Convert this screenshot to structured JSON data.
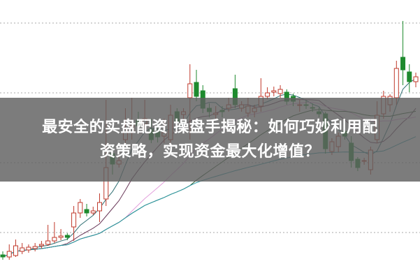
{
  "title": {
    "line1": "最安全的实盘配资 操盘手揭秘：如何巧妙利用配",
    "line2": "资策略，实现资金最大化增值？"
  },
  "chart_data": {
    "type": "candlestick",
    "grid": true,
    "colors": {
      "up": "#c0392b",
      "down": "#1e8a2e",
      "ma": [
        "#2f6f73",
        "#6b3a5a",
        "#e3a0dc",
        "#2d5a2d",
        "#2a9aa8"
      ]
    },
    "moving_average_periods": [
      5,
      10,
      20,
      30,
      60
    ],
    "candles_ohlc": [
      [
        35,
        32,
        40,
        28
      ],
      [
        32,
        40,
        50,
        28
      ],
      [
        34,
        48,
        57,
        32
      ],
      [
        40,
        45,
        52,
        36
      ],
      [
        42,
        46,
        50,
        38
      ],
      [
        44,
        47,
        52,
        40
      ],
      [
        48,
        50,
        55,
        44
      ],
      [
        50,
        55,
        78,
        48
      ],
      [
        55,
        60,
        82,
        52
      ],
      [
        60,
        62,
        72,
        56
      ],
      [
        63,
        60,
        66,
        56
      ],
      [
        75,
        95,
        105,
        55
      ],
      [
        95,
        110,
        115,
        88
      ],
      [
        100,
        95,
        108,
        90
      ],
      [
        95,
        98,
        104,
        92
      ],
      [
        98,
        110,
        123,
        82
      ],
      [
        115,
        160,
        257,
        105
      ],
      [
        180,
        165,
        190,
        150
      ],
      [
        165,
        170,
        185,
        160
      ],
      [
        200,
        215,
        245,
        195
      ],
      [
        210,
        220,
        260,
        200
      ],
      [
        228,
        220,
        240,
        212
      ],
      [
        222,
        230,
        257,
        215
      ],
      [
        215,
        200,
        230,
        195
      ],
      [
        212,
        204,
        225,
        196
      ],
      [
        205,
        210,
        230,
        195
      ],
      [
        200,
        235,
        250,
        190
      ],
      [
        240,
        225,
        245,
        218
      ],
      [
        236,
        240,
        245,
        228
      ],
      [
        260,
        280,
        308,
        200
      ],
      [
        282,
        262,
        300,
        255
      ],
      [
        270,
        245,
        278,
        238
      ],
      [
        245,
        240,
        252,
        232
      ],
      [
        236,
        238,
        248,
        230
      ],
      [
        242,
        240,
        248,
        232
      ],
      [
        245,
        250,
        260,
        240
      ],
      [
        273,
        250,
        293,
        245
      ],
      [
        245,
        250,
        255,
        240
      ],
      [
        238,
        248,
        260,
        232
      ],
      [
        240,
        245,
        250,
        232
      ],
      [
        248,
        262,
        288,
        240
      ],
      [
        262,
        267,
        275,
        258
      ],
      [
        268,
        270,
        276,
        262
      ],
      [
        266,
        272,
        278,
        260
      ],
      [
        268,
        255,
        272,
        250
      ],
      [
        262,
        255,
        266,
        248
      ],
      [
        250,
        250,
        258,
        240
      ],
      [
        250,
        249,
        256,
        244
      ],
      [
        246,
        245,
        252,
        240
      ],
      [
        240,
        237,
        246,
        232
      ],
      [
        237,
        187,
        240,
        180
      ],
      [
        183,
        197,
        202,
        178
      ],
      [
        190,
        205,
        210,
        182
      ],
      [
        212,
        205,
        215,
        200
      ],
      [
        195,
        170,
        205,
        160
      ],
      [
        172,
        160,
        175,
        155
      ],
      [
        170,
        170,
        174,
        164
      ],
      [
        157,
        185,
        190,
        150
      ],
      [
        200,
        235,
        255,
        195
      ],
      [
        237,
        262,
        270,
        230
      ],
      [
        250,
        262,
        265,
        240
      ],
      [
        260,
        302,
        313,
        250
      ],
      [
        318,
        300,
        370,
        278
      ],
      [
        297,
        283,
        308,
        268
      ],
      [
        283,
        290,
        296,
        275
      ]
    ]
  }
}
